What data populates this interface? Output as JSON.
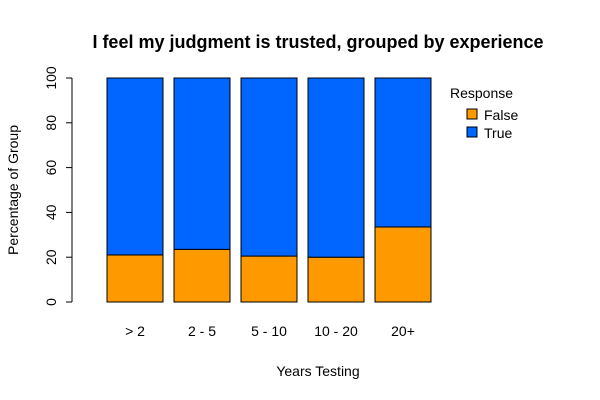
{
  "chart_data": {
    "type": "bar",
    "stacked": true,
    "title": "I feel my judgment is trusted, grouped by experience",
    "xlabel": "Years Testing",
    "ylabel": "Percentage of Group",
    "ylim": [
      0,
      100
    ],
    "yticks": [
      0,
      20,
      40,
      60,
      80,
      100
    ],
    "categories": [
      "> 2",
      "2 - 5",
      "5 - 10",
      "10 - 20",
      "20+"
    ],
    "series": [
      {
        "name": "False",
        "color": "#FF9900",
        "values": [
          21,
          23.5,
          20.5,
          20,
          33.5
        ]
      },
      {
        "name": "True",
        "color": "#0066FF",
        "values": [
          79,
          76.5,
          79.5,
          80,
          66.5
        ]
      }
    ],
    "legend": {
      "title": "Response",
      "placement": "right"
    },
    "grid": false
  }
}
